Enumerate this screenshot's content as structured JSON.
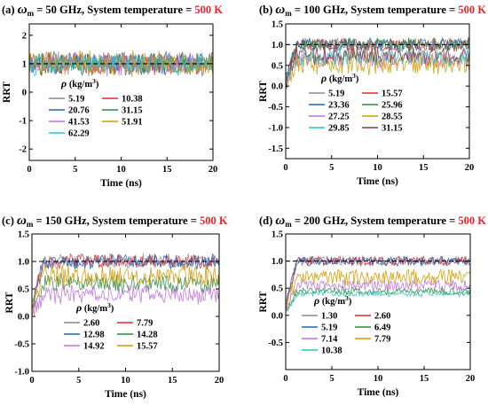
{
  "chart_data": [
    {
      "type": "line",
      "panel": "(a)",
      "title_parts": [
        "(a) ",
        "ω",
        "m",
        " = 50 GHz, System temperature = ",
        "500 K"
      ],
      "xlabel": "Time (ns)",
      "ylabel": "RRT",
      "xlim": [
        0,
        20
      ],
      "ylim": [
        -2.4,
        2.4
      ],
      "xticks": [
        "0",
        "5",
        "10",
        "15",
        "20"
      ],
      "yticks": [
        "-2",
        "-1",
        "0",
        "1",
        "2"
      ],
      "yticks_values": [
        -2,
        -1,
        0,
        1,
        2
      ],
      "reference_line": 1.0,
      "legend_title_parts": [
        "ρ",
        " (kg/m",
        "3",
        ")"
      ],
      "legend_columns": 2,
      "series": [
        {
          "name": "5.19",
          "color": "#8c8c8c",
          "mean": 1.0,
          "spread": 0.45
        },
        {
          "name": "10.38",
          "color": "#e8262b",
          "mean": 1.0,
          "spread": 0.45
        },
        {
          "name": "20.76",
          "color": "#1f63b5",
          "mean": 1.0,
          "spread": 0.45
        },
        {
          "name": "31.15",
          "color": "#2e8b3d",
          "mean": 1.0,
          "spread": 0.45
        },
        {
          "name": "41.53",
          "color": "#c070e0",
          "mean": 1.0,
          "spread": 0.5
        },
        {
          "name": "51.91",
          "color": "#d49a00",
          "mean": 1.0,
          "spread": 0.5
        },
        {
          "name": "62.29",
          "color": "#26c2c8",
          "mean": 1.0,
          "spread": 0.45
        }
      ]
    },
    {
      "type": "line",
      "panel": "(b)",
      "title_parts": [
        "(b) ",
        "ω",
        "m",
        " = 100 GHz, System temperature = ",
        "500 K"
      ],
      "xlabel": "Time (ns)",
      "ylabel": "RRT",
      "xlim": [
        0,
        20
      ],
      "ylim": [
        -1.75,
        1.5
      ],
      "xticks": [
        "0",
        "5",
        "10",
        "15",
        "20"
      ],
      "yticks": [
        "-1.5",
        "-1.0",
        "-0.5",
        "0.0",
        "0.5",
        "1.0",
        "1.5"
      ],
      "yticks_values": [
        -1.5,
        -1.0,
        -0.5,
        0.0,
        0.5,
        1.0,
        1.5
      ],
      "reference_line": 1.0,
      "legend_title_parts": [
        "ρ",
        " (kg/m",
        "3",
        ")"
      ],
      "legend_columns": 2,
      "series": [
        {
          "name": "5.19",
          "color": "#8c8c8c",
          "mean": 1.0,
          "spread": 0.18
        },
        {
          "name": "15.57",
          "color": "#e8262b",
          "mean": 1.0,
          "spread": 0.18
        },
        {
          "name": "23.36",
          "color": "#1f63b5",
          "mean": 1.0,
          "spread": 0.18
        },
        {
          "name": "25.96",
          "color": "#2e8b3d",
          "mean": 1.0,
          "spread": 0.18
        },
        {
          "name": "27.25",
          "color": "#c070e0",
          "mean": 0.65,
          "spread": 0.25
        },
        {
          "name": "28.55",
          "color": "#d49a00",
          "mean": 0.55,
          "spread": 0.3
        },
        {
          "name": "29.85",
          "color": "#26c2c8",
          "mean": 0.7,
          "spread": 0.25
        },
        {
          "name": "31.15",
          "color": "#8b3a3a",
          "mean": 0.75,
          "spread": 0.25
        }
      ]
    },
    {
      "type": "line",
      "panel": "(c)",
      "title_parts": [
        "(c) ",
        "ω",
        "m",
        " = 150 GHz, System temperature = ",
        "500 K"
      ],
      "xlabel": "Time (ns)",
      "ylabel": "RRT",
      "xlim": [
        0,
        20
      ],
      "ylim": [
        -1.0,
        1.5
      ],
      "xticks": [
        "0",
        "5",
        "10",
        "15",
        "20"
      ],
      "yticks": [
        "-1.0",
        "-0.5",
        "0.0",
        "0.5",
        "1.0",
        "1.5"
      ],
      "yticks_values": [
        -1.0,
        -0.5,
        0.0,
        0.5,
        1.0,
        1.5
      ],
      "reference_line": 1.0,
      "legend_title_parts": [
        "ρ",
        " (kg/m",
        "3",
        ")"
      ],
      "legend_columns": 2,
      "series": [
        {
          "name": "2.60",
          "color": "#8c8c8c",
          "mean": 1.0,
          "spread": 0.15
        },
        {
          "name": "7.79",
          "color": "#e8262b",
          "mean": 1.0,
          "spread": 0.15
        },
        {
          "name": "12.98",
          "color": "#1f63b5",
          "mean": 1.0,
          "spread": 0.15
        },
        {
          "name": "14.28",
          "color": "#2e8b3d",
          "mean": 0.6,
          "spread": 0.2
        },
        {
          "name": "14.92",
          "color": "#c070e0",
          "mean": 0.4,
          "spread": 0.2
        },
        {
          "name": "15.57",
          "color": "#d49a00",
          "mean": 0.75,
          "spread": 0.22
        }
      ]
    },
    {
      "type": "line",
      "panel": "(d)",
      "title_parts": [
        "(d) ",
        "ω",
        "m",
        " = 200 GHz, System temperature = ",
        "500 K"
      ],
      "xlabel": "Time (ns)",
      "ylabel": "RRT",
      "xlim": [
        0,
        20
      ],
      "ylim": [
        -1.0,
        1.5
      ],
      "xticks": [
        "0",
        "5",
        "10",
        "15",
        "20"
      ],
      "yticks": [
        "-0.5",
        "0.0",
        "0.5",
        "1.0",
        "1.5"
      ],
      "yticks_values": [
        -0.5,
        0.0,
        0.5,
        1.0,
        1.5
      ],
      "reference_line": 1.0,
      "legend_title_parts": [
        "ρ",
        " (kg/m",
        "3",
        ")"
      ],
      "legend_columns": 2,
      "series": [
        {
          "name": "1.30",
          "color": "#8c8c8c",
          "mean": 1.0,
          "spread": 0.1
        },
        {
          "name": "2.60",
          "color": "#e8262b",
          "mean": 1.0,
          "spread": 0.1
        },
        {
          "name": "5.19",
          "color": "#1f63b5",
          "mean": 1.0,
          "spread": 0.1
        },
        {
          "name": "6.49",
          "color": "#2e8b3d",
          "mean": 0.45,
          "spread": 0.08
        },
        {
          "name": "7.14",
          "color": "#c070e0",
          "mean": 0.55,
          "spread": 0.12
        },
        {
          "name": "7.79",
          "color": "#d49a00",
          "mean": 0.7,
          "spread": 0.18
        },
        {
          "name": "10.38",
          "color": "#26c2c8",
          "mean": 0.4,
          "spread": 0.06
        }
      ]
    }
  ]
}
